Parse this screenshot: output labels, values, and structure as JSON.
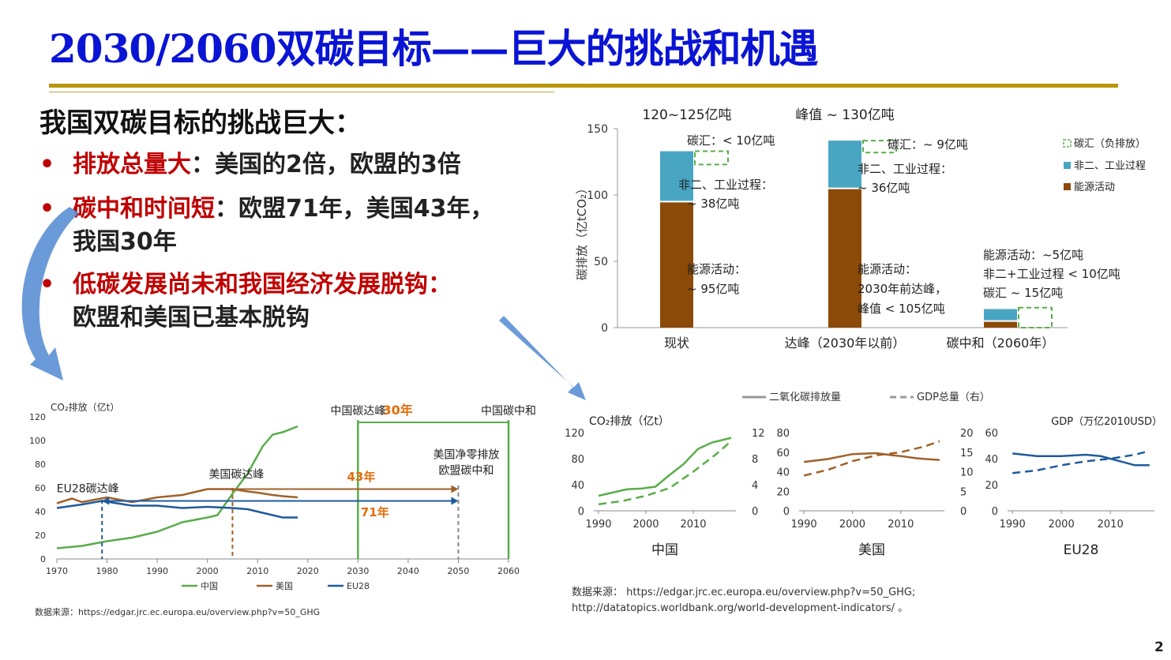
{
  "slide": {
    "title": "2030/2060双碳目标——巨大的挑战和机遇",
    "heading": "我国双碳目标的挑战巨大：",
    "bullets": [
      {
        "emph": "排放总量大",
        "rest": "：美国的2倍，欧盟的3倍",
        "cont": ""
      },
      {
        "emph": "碳中和时间短",
        "rest": "：欧盟71年，美国43年，",
        "cont": "我国30年"
      },
      {
        "emph": "低碳发展尚未和我国经济发展脱钩：",
        "rest": "",
        "cont": "欧盟和美国已基本脱钩"
      }
    ],
    "page_number": "2",
    "bullet_marker": "•"
  },
  "chart_data": [
    {
      "type": "bar",
      "title": "",
      "stack_labels": [
        "120~125亿吨",
        "峰值 ~ 130亿吨"
      ],
      "ylabel": "碳排放（亿tCO₂）",
      "ylim": [
        0,
        150
      ],
      "yticks": [
        "0",
        "50",
        "100",
        "150"
      ],
      "categories": [
        "现状",
        "达峰（2030年以前）",
        "碳中和（2060年）"
      ],
      "series": [
        {
          "name": "能源活动",
          "color": "#8b4a07",
          "values": [
            95,
            105,
            5
          ]
        },
        {
          "name": "非二、工业过程",
          "color": "#49a6c3",
          "values": [
            38,
            36,
            9
          ]
        },
        {
          "name": "碳汇（负排放）",
          "color": "#5aad4a",
          "values": [
            -10,
            -9,
            -15
          ]
        }
      ],
      "annotations": [
        [
          "碳汇：< 10亿吨",
          "非二、工业过程：",
          "~ 38亿吨",
          "能源活动：",
          "~ 95亿吨"
        ],
        [
          "碳汇：~ 9亿吨",
          "非二、工业过程：",
          "~ 36亿吨",
          "能源活动：",
          "2030年前达峰，",
          "峰值 < 105亿吨"
        ],
        [
          "能源活动：~5亿吨",
          "非二+工业过程 < 10亿吨",
          "碳汇 ~ 15亿吨"
        ]
      ]
    },
    {
      "type": "line",
      "ylabel": "CO₂排放（亿t）",
      "ylim": [
        0,
        120
      ],
      "xlim": [
        1970,
        2060
      ],
      "xticks": [
        "1970",
        "1980",
        "1990",
        "2000",
        "2010",
        "2020",
        "2030",
        "2040",
        "2050",
        "2060"
      ],
      "yticks": [
        "0",
        "20",
        "40",
        "60",
        "80",
        "100",
        "120"
      ],
      "series": [
        {
          "name": "中国",
          "color": "#5aad4a",
          "x": [
            1970,
            1975,
            1980,
            1985,
            1990,
            1995,
            2000,
            2002,
            2005,
            2008,
            2011,
            2013,
            2015,
            2018
          ],
          "y": [
            9,
            11,
            15,
            18,
            23,
            31,
            35,
            37,
            55,
            72,
            95,
            105,
            107,
            112
          ]
        },
        {
          "name": "美国",
          "color": "#a0612a",
          "x": [
            1970,
            1973,
            1975,
            1980,
            1985,
            1990,
            1995,
            2000,
            2005,
            2008,
            2010,
            2013,
            2015,
            2018
          ],
          "y": [
            47,
            51,
            48,
            52,
            48,
            52,
            54,
            59,
            59,
            57,
            56,
            54,
            53,
            52
          ]
        },
        {
          "name": "EU28",
          "color": "#1f5b9c",
          "x": [
            1970,
            1975,
            1979,
            1985,
            1990,
            1995,
            2000,
            2005,
            2008,
            2010,
            2013,
            2015,
            2018
          ],
          "y": [
            43,
            46,
            49,
            45,
            45,
            43,
            44,
            43,
            42,
            40,
            37,
            35,
            35
          ]
        }
      ],
      "events": [
        {
          "label": "EU28碳达峰",
          "x": 1979
        },
        {
          "label": "美国碳达峰",
          "x": 2005
        },
        {
          "label": "中国碳达峰",
          "x": 2030
        },
        {
          "label": "中国碳中和",
          "x": 2060
        },
        {
          "label": "美国净零排放",
          "x": 2050
        },
        {
          "label": "欧盟碳中和",
          "x": 2050
        }
      ],
      "spans": [
        {
          "label": "30年",
          "from": 2030,
          "to": 2060
        },
        {
          "label": "43年",
          "from": 2005,
          "to": 2050
        },
        {
          "label": "71年",
          "from": 1979,
          "to": 2050
        }
      ],
      "source": "数据来源：https://edgar.jrc.ec.europa.eu/overview.php?v=50_GHG"
    },
    {
      "type": "line",
      "legend": [
        "二氧化碳排放量",
        "GDP总量（右）"
      ],
      "panels": [
        {
          "name": "中国",
          "ylabel_left": "CO₂排放（亿t）",
          "ylim_left": [
            0,
            120
          ],
          "yticks_left": [
            "0",
            "40",
            "80",
            "120"
          ],
          "ylim_right": [
            0,
            12
          ],
          "yticks_right": [
            "0",
            "4",
            "8",
            "12"
          ],
          "xticks": [
            "1990",
            "2000",
            "2010"
          ],
          "co2": {
            "x": [
              1990,
              1993,
              1996,
              1999,
              2002,
              2005,
              2008,
              2011,
              2014,
              2018
            ],
            "y": [
              23,
              28,
              33,
              34,
              37,
              55,
              72,
              95,
              105,
              112
            ]
          },
          "gdp": {
            "x": [
              1990,
              1995,
              2000,
              2005,
              2010,
              2015,
              2018
            ],
            "y": [
              1,
              1.5,
              2.3,
              3.5,
              6,
              8.8,
              10.7
            ]
          }
        },
        {
          "name": "美国",
          "ylabel_left": "",
          "ylim_left": [
            0,
            80
          ],
          "yticks_left": [
            "0",
            "20",
            "40",
            "60",
            "80"
          ],
          "ylim_right": [
            0,
            20
          ],
          "yticks_right": [
            "0",
            "5",
            "10",
            "15",
            "20"
          ],
          "xticks": [
            "1990",
            "2000",
            "2010"
          ],
          "co2": {
            "x": [
              1990,
              1995,
              2000,
              2005,
              2008,
              2010,
              2013,
              2015,
              2018
            ],
            "y": [
              50,
              53,
              58,
              59,
              57,
              56,
              54,
              53,
              52
            ]
          },
          "gdp": {
            "x": [
              1990,
              1995,
              2000,
              2005,
              2010,
              2015,
              2018
            ],
            "y": [
              9,
              10.5,
              12.7,
              14.2,
              15,
              16.5,
              17.8
            ]
          }
        },
        {
          "name": "EU28",
          "ylabel_left": "",
          "ylabel_right": "GDP（万亿2010USD）",
          "ylim_left": [
            0,
            60
          ],
          "yticks_left": [
            "0",
            "20",
            "40",
            "60"
          ],
          "xticks": [
            "1990",
            "2000",
            "2010"
          ],
          "co2": {
            "x": [
              1990,
              1995,
              2000,
              2005,
              2008,
              2010,
              2013,
              2015,
              2018
            ],
            "y": [
              44,
              42,
              42,
              43,
              42,
              40,
              37,
              35,
              35
            ]
          },
          "gdp": {
            "x": [
              1990,
              1995,
              2000,
              2005,
              2010,
              2015,
              2018
            ],
            "y": [
              29,
              31,
              35,
              38,
              40,
              43,
              46
            ]
          }
        }
      ],
      "source_lines": [
        "数据来源：  https://edgar.jrc.ec.europa.eu/overview.php?v=50_GHG;",
        "http://datatopics.worldbank.org/world-development-indicators/ 。"
      ]
    }
  ]
}
